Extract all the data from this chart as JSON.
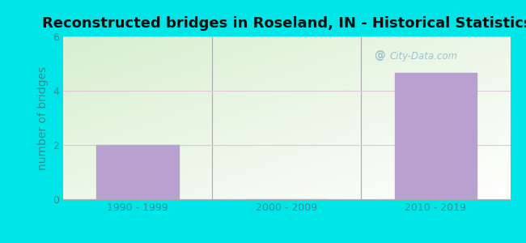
{
  "title": "Reconstructed bridges in Roseland, IN - Historical Statistics",
  "categories": [
    "1990 - 1999",
    "2000 - 2009",
    "2010 - 2019"
  ],
  "values": [
    2,
    0,
    4.67
  ],
  "bar_color": "#b8a0cf",
  "ylabel": "number of bridges",
  "ylim": [
    0,
    6
  ],
  "yticks": [
    0,
    2,
    4,
    6
  ],
  "background_outer": "#00e5e8",
  "background_grad_top_left": "#d8efd0",
  "background_grad_bottom_right": "#f8fff4",
  "grid_color": "#e0c8d8",
  "title_color": "#111111",
  "axis_label_color": "#2a9090",
  "tick_label_color": "#2a9090",
  "watermark_text": "City-Data.com",
  "title_fontsize": 13,
  "label_fontsize": 10,
  "tick_fontsize": 9
}
